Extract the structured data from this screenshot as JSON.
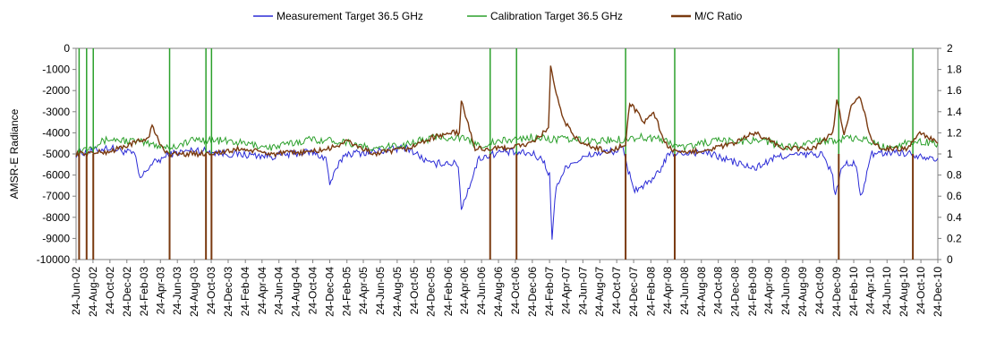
{
  "chart_data": {
    "type": "line",
    "title": "",
    "xlabel": "",
    "ylabel": "AMSR-E Radiance",
    "ylim": [
      -10000,
      0
    ],
    "y_ticks": [
      "0",
      "-1000",
      "-2000",
      "-3000",
      "-4000",
      "-5000",
      "-6000",
      "-7000",
      "-8000",
      "-9000",
      "-10000"
    ],
    "y2lim": [
      0,
      2
    ],
    "y2_ticks": [
      "2",
      "1.8",
      "1.6",
      "1.4",
      "1.2",
      "1",
      "0.8",
      "0.6",
      "0.4",
      "0.2",
      "0"
    ],
    "x_range": [
      "2002-06-24",
      "2010-12-24"
    ],
    "x_ticks": [
      "24-Jun-02",
      "24-Aug-02",
      "24-Oct-02",
      "24-Dec-02",
      "24-Feb-03",
      "24-Apr-03",
      "24-Jun-03",
      "24-Aug-03",
      "24-Oct-03",
      "24-Dec-03",
      "24-Feb-04",
      "24-Apr-04",
      "24-Jun-04",
      "24-Aug-04",
      "24-Oct-04",
      "24-Dec-04",
      "24-Feb-05",
      "24-Apr-05",
      "24-Jun-05",
      "24-Aug-05",
      "24-Oct-05",
      "24-Dec-05",
      "24-Feb-06",
      "24-Apr-06",
      "24-Jun-06",
      "24-Aug-06",
      "24-Oct-06",
      "24-Dec-06",
      "24-Feb-07",
      "24-Apr-07",
      "24-Jun-07",
      "24-Aug-07",
      "24-Oct-07",
      "24-Dec-07",
      "24-Feb-08",
      "24-Apr-08",
      "24-Jun-08",
      "24-Aug-08",
      "24-Oct-08",
      "24-Dec-08",
      "24-Feb-09",
      "24-Apr-09",
      "24-Jun-09",
      "24-Aug-09",
      "24-Oct-09",
      "24-Dec-09",
      "24-Feb-10",
      "24-Apr-10",
      "24-Jun-10",
      "24-Aug-10",
      "24-Oct-10",
      "24-Dec-10"
    ],
    "grid": false,
    "legend_position": "top",
    "series": [
      {
        "name": "Measurement Target 36.5 GHz",
        "axis": "left",
        "color": "#2b2bd6",
        "x": [
          "2002-06-24",
          "2002-10-20",
          "2003-01-20",
          "2003-02-10",
          "2003-03-20",
          "2003-06-01",
          "2003-09-01",
          "2003-12-24",
          "2004-06-01",
          "2004-10-15",
          "2004-12-10",
          "2004-12-24",
          "2005-02-15",
          "2005-06-01",
          "2005-10-01",
          "2005-12-24",
          "2006-02-15",
          "2006-04-01",
          "2006-04-12",
          "2006-06-15",
          "2006-09-01",
          "2006-12-24",
          "2007-02-01",
          "2007-02-24",
          "2007-03-05",
          "2007-03-20",
          "2007-05-01",
          "2007-08-01",
          "2007-11-15",
          "2007-12-05",
          "2007-12-28",
          "2008-03-01",
          "2008-05-01",
          "2008-09-01",
          "2008-12-01",
          "2009-03-01",
          "2009-06-01",
          "2009-11-01",
          "2009-12-10",
          "2009-12-20",
          "2010-01-15",
          "2010-03-05",
          "2010-03-20",
          "2010-05-01",
          "2010-08-01",
          "2010-12-24"
        ],
        "y": [
          -5000,
          -4700,
          -5000,
          -6200,
          -5500,
          -5000,
          -4800,
          -5000,
          -5100,
          -4900,
          -5200,
          -6400,
          -5000,
          -4900,
          -4700,
          -5500,
          -5400,
          -5500,
          -7600,
          -5200,
          -4900,
          -5000,
          -5300,
          -6000,
          -9000,
          -6500,
          -5500,
          -5000,
          -4800,
          -5800,
          -6700,
          -6300,
          -5000,
          -4900,
          -5300,
          -5700,
          -5100,
          -5000,
          -6000,
          -7000,
          -5500,
          -5500,
          -7100,
          -5000,
          -4900,
          -5200
        ]
      },
      {
        "name": "Calibration Target 36.5 GHz",
        "axis": "left",
        "color": "#2ca02c",
        "x": [
          "2002-06-24",
          "2002-10-20",
          "2003-01-20",
          "2003-06-01",
          "2003-09-01",
          "2003-12-24",
          "2004-06-01",
          "2004-10-15",
          "2005-02-15",
          "2005-06-01",
          "2005-10-01",
          "2006-01-15",
          "2006-04-01",
          "2006-06-15",
          "2006-09-01",
          "2006-12-24",
          "2007-02-24",
          "2007-04-01",
          "2007-08-01",
          "2007-11-15",
          "2008-01-15",
          "2008-04-01",
          "2008-06-15",
          "2008-10-01",
          "2009-01-15",
          "2009-04-01",
          "2009-06-15",
          "2009-10-01",
          "2010-01-15",
          "2010-04-01",
          "2010-06-15",
          "2010-10-01",
          "2010-12-24"
        ],
        "y": [
          -4900,
          -4300,
          -4400,
          -4700,
          -4300,
          -4400,
          -4700,
          -4300,
          -4400,
          -4800,
          -4500,
          -4200,
          -4200,
          -4600,
          -4400,
          -4200,
          -4300,
          -4300,
          -4400,
          -4300,
          -4200,
          -4300,
          -4700,
          -4400,
          -4400,
          -4300,
          -4700,
          -4400,
          -4300,
          -4300,
          -4700,
          -4400,
          -4500
        ],
        "spikes": [
          "2002-07-05",
          "2002-08-01",
          "2002-08-25",
          "2003-05-27",
          "2003-10-05",
          "2003-10-25",
          "2006-07-25",
          "2006-10-28",
          "2007-11-25",
          "2008-05-20",
          "2010-01-01",
          "2010-09-25"
        ]
      },
      {
        "name": "M/C Ratio",
        "axis": "right",
        "color": "#7a3a10",
        "x": [
          "2002-06-24",
          "2002-10-20",
          "2003-01-15",
          "2003-03-10",
          "2003-03-25",
          "2003-05-01",
          "2003-06-01",
          "2003-09-01",
          "2003-12-24",
          "2004-02-01",
          "2004-06-01",
          "2004-10-15",
          "2004-12-24",
          "2005-02-25",
          "2005-06-01",
          "2005-10-01",
          "2005-12-24",
          "2006-03-01",
          "2006-04-05",
          "2006-04-12",
          "2006-06-01",
          "2006-09-01",
          "2006-12-24",
          "2007-02-20",
          "2007-02-28",
          "2007-03-20",
          "2007-04-20",
          "2007-06-15",
          "2007-10-01",
          "2007-11-25",
          "2007-12-10",
          "2008-02-01",
          "2008-03-05",
          "2008-04-15",
          "2008-06-01",
          "2008-10-01",
          "2008-12-24",
          "2009-03-01",
          "2009-04-15",
          "2009-06-15",
          "2009-10-01",
          "2009-12-10",
          "2009-12-25",
          "2010-01-20",
          "2010-02-15",
          "2010-03-20",
          "2010-04-25",
          "2010-06-01",
          "2010-09-01",
          "2010-10-25",
          "2010-12-24"
        ],
        "y": [
          1.0,
          1.02,
          1.1,
          1.15,
          1.26,
          1.05,
          1.0,
          1.0,
          1.02,
          1.05,
          1.0,
          1.02,
          1.05,
          1.12,
          1.0,
          1.05,
          1.15,
          1.2,
          1.2,
          1.5,
          1.05,
          1.05,
          1.1,
          1.25,
          1.82,
          1.55,
          1.3,
          1.1,
          1.02,
          1.1,
          1.48,
          1.3,
          1.4,
          1.1,
          1.0,
          1.05,
          1.1,
          1.2,
          1.15,
          1.05,
          1.05,
          1.2,
          1.5,
          1.2,
          1.45,
          1.55,
          1.15,
          1.05,
          1.05,
          1.2,
          1.1
        ],
        "spikes": [
          "2002-07-05",
          "2002-08-01",
          "2002-08-25",
          "2003-05-27",
          "2003-10-05",
          "2003-10-25",
          "2006-07-25",
          "2006-10-28",
          "2007-11-25",
          "2008-05-20",
          "2010-01-01",
          "2010-09-25"
        ]
      }
    ]
  }
}
